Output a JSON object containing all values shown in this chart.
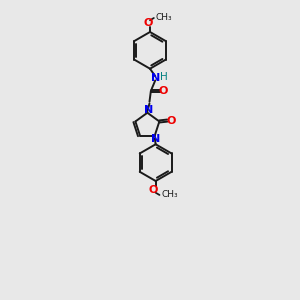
{
  "bg_color": "#e8e8e8",
  "bond_color": "#1a1a1a",
  "N_color": "#0000ee",
  "O_color": "#ee0000",
  "H_color": "#008080",
  "line_width": 1.4,
  "dbo": 0.07,
  "xlim": [
    0,
    10
  ],
  "ylim": [
    0,
    17
  ]
}
